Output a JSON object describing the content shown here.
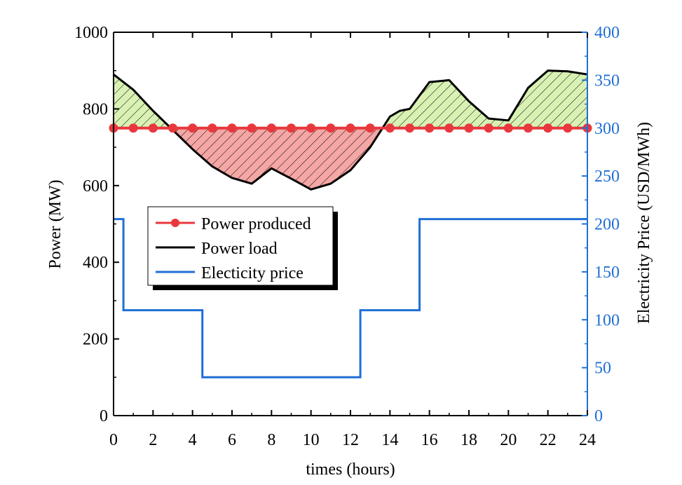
{
  "chart_data": {
    "type": "line",
    "xlabel": "times (hours)",
    "ylabel": "Power (MW)",
    "y2label": "Electricity Price (USD/MWh)",
    "xlim": [
      0,
      24
    ],
    "ylim": [
      0,
      1000
    ],
    "y2lim": [
      0,
      400
    ],
    "xticks": [
      "0",
      "2",
      "4",
      "6",
      "8",
      "10",
      "12",
      "14",
      "16",
      "18",
      "20",
      "22",
      "24"
    ],
    "yticks": [
      "0",
      "200",
      "400",
      "600",
      "800",
      "1000"
    ],
    "y2ticks": [
      "0",
      "50",
      "100",
      "150",
      "200",
      "250",
      "300",
      "350",
      "400"
    ],
    "grid": false,
    "legend_placement": "center-left",
    "series": [
      {
        "name": "Power produced",
        "axis": "left",
        "color": "#e8383d",
        "marker": "circle",
        "x": [
          0,
          1,
          2,
          3,
          4,
          5,
          6,
          7,
          8,
          9,
          10,
          11,
          12,
          13,
          14,
          15,
          16,
          17,
          18,
          19,
          20,
          21,
          22,
          23,
          24
        ],
        "y": [
          750,
          750,
          750,
          750,
          750,
          750,
          750,
          750,
          750,
          750,
          750,
          750,
          750,
          750,
          750,
          750,
          750,
          750,
          750,
          750,
          750,
          750,
          750,
          750,
          750
        ]
      },
      {
        "name": "Power load",
        "axis": "left",
        "color": "#000000",
        "x": [
          0,
          1,
          2,
          3,
          4,
          5,
          6,
          7,
          8,
          9,
          10,
          11,
          12,
          13,
          14,
          14.5,
          15,
          16,
          17,
          18,
          19,
          20,
          21,
          22,
          23,
          24
        ],
        "y": [
          890,
          850,
          795,
          745,
          695,
          650,
          620,
          605,
          645,
          618,
          590,
          605,
          640,
          700,
          780,
          795,
          800,
          870,
          875,
          820,
          775,
          770,
          855,
          900,
          898,
          890
        ]
      },
      {
        "name": "Electicity price",
        "axis": "right",
        "color": "#1f6fd6",
        "step": true,
        "x": [
          0,
          0.5,
          0.5,
          4.5,
          4.5,
          12.5,
          12.5,
          15.5,
          15.5,
          24
        ],
        "y": [
          205,
          205,
          110,
          110,
          40,
          40,
          110,
          110,
          205,
          205
        ]
      }
    ],
    "fills": {
      "surplus_color": "#d9f2b4",
      "deficit_color": "#f4a7a5"
    }
  }
}
